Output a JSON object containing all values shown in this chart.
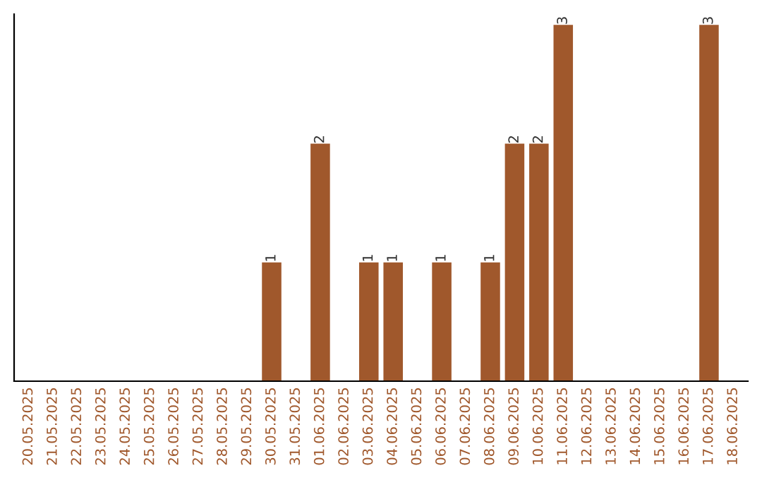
{
  "chart_data": {
    "type": "bar",
    "categories": [
      "20.05.2025",
      "21.05.2025",
      "22.05.2025",
      "23.05.2025",
      "24.05.2025",
      "25.05.2025",
      "26.05.2025",
      "27.05.2025",
      "28.05.2025",
      "29.05.2025",
      "30.05.2025",
      "31.05.2025",
      "01.06.2025",
      "02.06.2025",
      "03.06.2025",
      "04.06.2025",
      "05.06.2025",
      "06.06.2025",
      "07.06.2025",
      "08.06.2025",
      "09.06.2025",
      "10.06.2025",
      "11.06.2025",
      "12.06.2025",
      "13.06.2025",
      "14.06.2025",
      "15.06.2025",
      "16.06.2025",
      "17.06.2025",
      "18.06.2025"
    ],
    "values": [
      0,
      0,
      0,
      0,
      0,
      0,
      0,
      0,
      0,
      0,
      1,
      0,
      2,
      0,
      1,
      1,
      0,
      1,
      0,
      1,
      2,
      2,
      3,
      0,
      0,
      0,
      0,
      0,
      3,
      0
    ],
    "value_labels": [
      null,
      null,
      null,
      null,
      null,
      null,
      null,
      null,
      null,
      null,
      "1",
      null,
      "2",
      null,
      "1",
      "1",
      null,
      "1",
      null,
      "1",
      "2",
      "2",
      "3",
      null,
      null,
      null,
      null,
      null,
      "3",
      null
    ],
    "color": "#a0582c",
    "grid": false,
    "legend": false
  }
}
